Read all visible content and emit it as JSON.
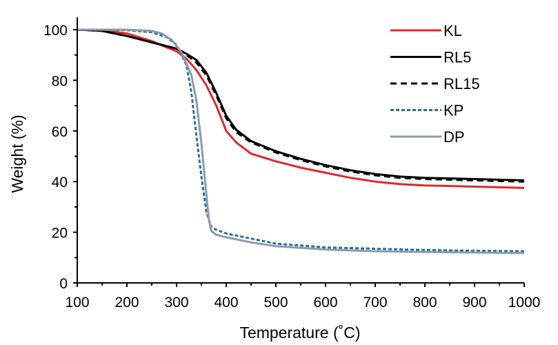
{
  "chart_data": {
    "type": "line",
    "xlabel": "Temperature (˚C)",
    "ylabel": "Weight (%)",
    "xlim": [
      100,
      1000
    ],
    "ylim": [
      0,
      100
    ],
    "x_ticks": [
      100,
      200,
      300,
      400,
      500,
      600,
      700,
      800,
      900,
      1000
    ],
    "y_ticks": [
      0,
      20,
      40,
      60,
      80,
      100
    ],
    "grid": false,
    "legend_position": "top-right",
    "series": [
      {
        "name": "KL",
        "color": "#e3262b",
        "dash": "solid",
        "x": [
          100,
          150,
          200,
          250,
          280,
          300,
          320,
          340,
          360,
          380,
          400,
          420,
          450,
          500,
          550,
          600,
          650,
          700,
          750,
          800,
          900,
          1000
        ],
        "y": [
          100,
          99.8,
          98.5,
          95.5,
          93,
          91.5,
          88.5,
          84,
          78,
          70,
          60,
          55.5,
          51,
          48,
          45.5,
          43.5,
          41.5,
          40,
          39,
          38.5,
          38,
          37.5
        ]
      },
      {
        "name": "RL5",
        "color": "#000000",
        "dash": "solid",
        "x": [
          100,
          150,
          200,
          250,
          300,
          320,
          340,
          360,
          380,
          400,
          420,
          450,
          500,
          550,
          600,
          650,
          700,
          750,
          800,
          900,
          1000
        ],
        "y": [
          100,
          99.5,
          97.5,
          95,
          92.5,
          90.5,
          88,
          83,
          75,
          66,
          60.5,
          56,
          52,
          49,
          46.5,
          44.5,
          43,
          42,
          41.5,
          41,
          40.5
        ]
      },
      {
        "name": "RL15",
        "color": "#000000",
        "dash": "dashed",
        "x": [
          100,
          150,
          200,
          250,
          300,
          320,
          340,
          360,
          380,
          400,
          420,
          450,
          500,
          550,
          600,
          650,
          700,
          750,
          800,
          900,
          1000
        ],
        "y": [
          100,
          99.5,
          97.5,
          95,
          92.5,
          90,
          87,
          82,
          74,
          65,
          59.5,
          55.5,
          51.5,
          48.5,
          46,
          44,
          42.5,
          41.5,
          41,
          40.5,
          40
        ]
      },
      {
        "name": "KP",
        "color": "#1f6fb4",
        "dash": "dotted",
        "x": [
          100,
          200,
          250,
          280,
          300,
          320,
          330,
          340,
          350,
          360,
          370,
          380,
          400,
          450,
          500,
          600,
          700,
          800,
          900,
          1000
        ],
        "y": [
          100,
          99.8,
          99,
          97,
          94,
          86,
          75,
          58,
          42,
          28,
          22,
          21,
          19.5,
          17.5,
          15.5,
          14,
          13.5,
          13,
          12.7,
          12.5
        ]
      },
      {
        "name": "DP",
        "color": "#8e9aa3",
        "dash": "solid",
        "x": [
          100,
          200,
          250,
          270,
          290,
          310,
          330,
          340,
          350,
          360,
          365,
          370,
          380,
          400,
          450,
          500,
          600,
          700,
          800,
          900,
          1000
        ],
        "y": [
          100,
          100,
          99.5,
          98.5,
          96,
          91,
          82,
          72,
          55,
          35,
          25,
          20.5,
          19,
          18,
          16,
          14.5,
          13.2,
          12.5,
          12.2,
          12,
          11.8
        ]
      }
    ]
  }
}
